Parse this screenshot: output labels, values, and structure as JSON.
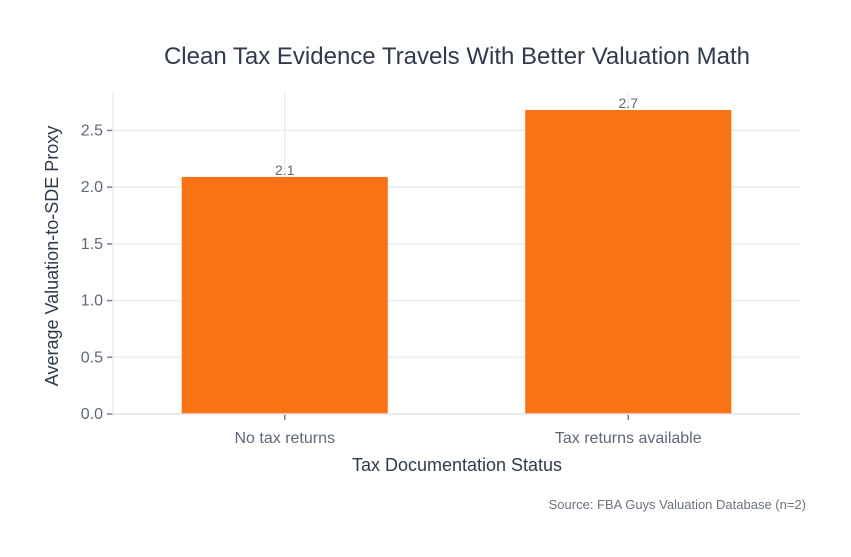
{
  "chart_data": {
    "type": "bar",
    "title": "Clean Tax Evidence Travels With Better Valuation Math",
    "xlabel": "Tax Documentation Status",
    "ylabel": "Average Valuation-to-SDE Proxy",
    "categories": [
      "No tax returns",
      "Tax returns available"
    ],
    "values": [
      2.09,
      2.68
    ],
    "data_labels": [
      "2.1",
      "2.7"
    ],
    "yticks": [
      "0.0",
      "0.5",
      "1.0",
      "1.5",
      "2.0",
      "2.5"
    ],
    "ylim": [
      0,
      2.83
    ],
    "grid": true,
    "bar_color": "#f97316",
    "source": "Source: FBA Guys Valuation Database (n=2)"
  }
}
